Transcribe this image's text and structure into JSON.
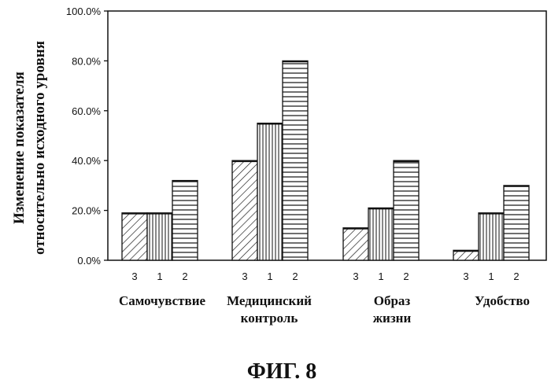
{
  "chart_data": {
    "type": "bar",
    "ylabel_line1": "Изменение показателя",
    "ylabel_line2": "относительно исходного уровня",
    "ylim": [
      0,
      100
    ],
    "yticks": [
      "0.0%",
      "20.0%",
      "40.0%",
      "60.0%",
      "80.0%",
      "100.0%"
    ],
    "groups": [
      {
        "label_lines": [
          "Самочувствие"
        ],
        "bars": [
          {
            "name": "3",
            "value": 19
          },
          {
            "name": "1",
            "value": 19
          },
          {
            "name": "2",
            "value": 32
          }
        ]
      },
      {
        "label_lines": [
          "Медицинский",
          "контроль"
        ],
        "bars": [
          {
            "name": "3",
            "value": 40
          },
          {
            "name": "1",
            "value": 55
          },
          {
            "name": "2",
            "value": 80
          }
        ]
      },
      {
        "label_lines": [
          "Образ",
          "жизни"
        ],
        "bars": [
          {
            "name": "3",
            "value": 13
          },
          {
            "name": "1",
            "value": 21
          },
          {
            "name": "2",
            "value": 40
          }
        ]
      },
      {
        "label_lines": [
          "Удобство"
        ],
        "bars": [
          {
            "name": "3",
            "value": 4
          },
          {
            "name": "1",
            "value": 19
          },
          {
            "name": "2",
            "value": 30
          }
        ]
      }
    ]
  },
  "figure_caption": "ФИГ. 8"
}
